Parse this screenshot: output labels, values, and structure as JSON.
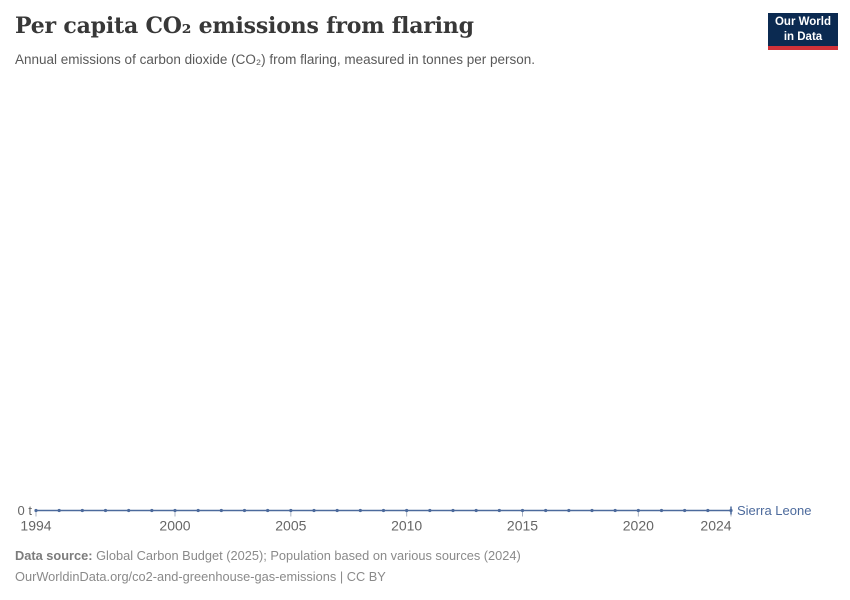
{
  "header": {
    "logo": {
      "line1": "Our World",
      "line2": "in Data"
    }
  },
  "footer": {
    "datasource_label": "Data source:",
    "datasource_text": " Global Carbon Budget (2025); Population based on various sources (2024)",
    "license_line": "OurWorldinData.org/co2-and-greenhouse-gas-emissions | CC BY"
  },
  "colors": {
    "series_blue": "#4C6A9C",
    "axis_label_gray": "#666666",
    "tick_gray": "#a8b1c2",
    "logo_navy": "#0b2a51",
    "logo_red": "#d13239"
  },
  "chart_data": {
    "type": "line",
    "title": "Per capita CO₂ emissions from flaring",
    "subtitle": "Annual emissions of carbon dioxide (CO₂) from flaring, measured in tonnes per person.",
    "x": [
      1994,
      1995,
      1996,
      1997,
      1998,
      1999,
      2000,
      2001,
      2002,
      2003,
      2004,
      2005,
      2006,
      2007,
      2008,
      2009,
      2010,
      2011,
      2012,
      2013,
      2014,
      2015,
      2016,
      2017,
      2018,
      2019,
      2020,
      2021,
      2022,
      2023,
      2024
    ],
    "series": [
      {
        "name": "Sierra Leone",
        "color": "#4C6A9C",
        "values": [
          0,
          0,
          0,
          0,
          0,
          0,
          0,
          0,
          0,
          0,
          0,
          0,
          0,
          0,
          0,
          0,
          0,
          0,
          0,
          0,
          0,
          0,
          0,
          0,
          0,
          0,
          0,
          0,
          0,
          0,
          0
        ]
      }
    ],
    "x_ticks": [
      1994,
      2000,
      2005,
      2010,
      2015,
      2020,
      2024
    ],
    "y_ticks": [
      "0 t"
    ],
    "xlim": [
      1994,
      2024
    ],
    "ylim": [
      0,
      1
    ],
    "xlabel": "",
    "ylabel": "",
    "grid": false,
    "legend_position": "end-of-line"
  }
}
